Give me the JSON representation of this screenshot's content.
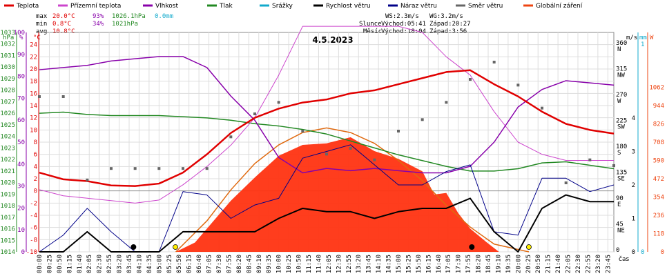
{
  "legend": [
    {
      "label": "Teplota",
      "color": "#e00000"
    },
    {
      "label": "Přízemní teplota",
      "color": "#cc44cc"
    },
    {
      "label": "Vlhkost",
      "color": "#8800aa"
    },
    {
      "label": "Tlak",
      "color": "#228822"
    },
    {
      "label": "Srážky",
      "color": "#11aacc"
    },
    {
      "label": "Rychlost větru",
      "color": "#000000"
    },
    {
      "label": "Náraz větru",
      "color": "#000088"
    },
    {
      "label": "Směr větru",
      "color": "#666666"
    },
    {
      "label": "Globální záření",
      "color": "#ee4411"
    }
  ],
  "stats": {
    "max_label": "max",
    "max_temp": "20.0°C",
    "max_hum": "93%",
    "max_press": "1026.1hPa",
    "max_rain": "0.0mm",
    "min_label": "min",
    "min_temp": "0.8°C",
    "min_hum": "34%",
    "min_press": "1021hPa",
    "avg_label": "avg",
    "avg_temp": "10.8°C"
  },
  "sun": {
    "ws": "WS:2.3m/s",
    "wg": "WG:3.2m/s",
    "sun_label": "Slunce",
    "sun_rise": "Východ:05:41",
    "sun_set": "Západ:20:27",
    "moon_label": "Měsíc",
    "moon_rise": "Východ:18:04",
    "moon_set": "Západ:3:56"
  },
  "colors": {
    "temp": "#e00000",
    "ground": "#cc44cc",
    "hum": "#8800aa",
    "press": "#228822",
    "rain": "#11aacc",
    "wind": "#000000",
    "gust": "#000088",
    "dir": "#666666",
    "rad": "#ee4411",
    "radfill": "#ff3311"
  },
  "chart_data": {
    "type": "line",
    "title": "4.5.2023",
    "xlabel": "čas",
    "x_ticks": [
      "00:00",
      "00:25",
      "00:50",
      "01:15",
      "01:40",
      "02:05",
      "02:30",
      "02:55",
      "03:20",
      "03:45",
      "04:10",
      "04:35",
      "05:00",
      "05:25",
      "05:50",
      "06:15",
      "06:40",
      "07:05",
      "07:30",
      "07:55",
      "08:20",
      "08:45",
      "09:10",
      "09:35",
      "10:00",
      "10:25",
      "10:50",
      "11:15",
      "11:40",
      "12:05",
      "12:30",
      "12:55",
      "13:20",
      "13:45",
      "14:10",
      "14:35",
      "15:00",
      "15:25",
      "15:50",
      "16:15",
      "16:40",
      "17:05",
      "17:30",
      "17:55",
      "18:20",
      "18:45",
      "19:10",
      "19:35",
      "20:00",
      "20:25",
      "20:50",
      "21:15",
      "21:40",
      "22:05",
      "22:30",
      "22:55",
      "23:20",
      "23:45"
    ],
    "axes": {
      "pressure": {
        "label": "hPa",
        "min": 1014,
        "max": 1033,
        "ticks": [
          "1033",
          "1032",
          "1031",
          "1030",
          "1029",
          "1028",
          "1027",
          "1026",
          "1025",
          "1024",
          "1023",
          "1022",
          "1021",
          "1020",
          "1019",
          "1018",
          "1017",
          "1016",
          "1015",
          "1014"
        ]
      },
      "humidity": {
        "label": "%",
        "min": 0,
        "max": 100,
        "ticks": [
          "100",
          "90",
          "80",
          "70",
          "60",
          "50",
          "40",
          "30",
          "20",
          "10",
          "0"
        ]
      },
      "temperature": {
        "label": "°C",
        "min": -10,
        "max": 26,
        "ticks": [
          "24",
          "22",
          "20",
          "18",
          "16",
          "14",
          "12",
          "10",
          "8",
          "6",
          "4",
          "2",
          "0",
          "-2",
          "-4",
          "-6",
          "-8",
          "-10"
        ]
      },
      "wind_direction": {
        "ticks": [
          {
            "v": "360",
            "d": "N"
          },
          {
            "v": "315",
            "d": "NW"
          },
          {
            "v": "270",
            "d": "W"
          },
          {
            "v": "225",
            "d": "SW"
          },
          {
            "v": "180",
            "d": "S"
          },
          {
            "v": "135",
            "d": "SE"
          },
          {
            "v": "90",
            "d": "E"
          },
          {
            "v": "45",
            "d": "NE"
          },
          {
            "v": "0",
            "d": ""
          }
        ]
      },
      "wind_speed": {
        "label": "m/s",
        "ticks": [
          "4",
          "3",
          "2",
          "1",
          "0"
        ]
      },
      "rain": {
        "label": "mm",
        "ticks": [
          "1",
          "0"
        ]
      },
      "radiation": {
        "label": "W",
        "ticks": [
          "1062",
          "944",
          "826",
          "708",
          "590",
          "472",
          "354",
          "236",
          "118",
          "0"
        ]
      }
    },
    "series": [
      {
        "name": "Teplota",
        "unit": "°C",
        "points": [
          [
            0,
            3
          ],
          [
            1,
            1.9
          ],
          [
            2,
            1.6
          ],
          [
            3,
            0.9
          ],
          [
            4,
            0.8
          ],
          [
            5,
            1.2
          ],
          [
            6,
            3
          ],
          [
            7,
            6
          ],
          [
            8,
            9.5
          ],
          [
            9,
            12
          ],
          [
            10,
            13.5
          ],
          [
            11,
            14.5
          ],
          [
            12,
            15
          ],
          [
            13,
            16
          ],
          [
            14,
            16.5
          ],
          [
            15,
            17.5
          ],
          [
            16,
            18.5
          ],
          [
            17,
            19.5
          ],
          [
            18,
            19.8
          ],
          [
            19,
            17.5
          ],
          [
            20,
            15.5
          ],
          [
            21,
            13
          ],
          [
            22,
            11
          ],
          [
            23,
            10
          ],
          [
            24,
            9.4
          ]
        ]
      },
      {
        "name": "Přízemní teplota",
        "unit": "°C",
        "points": [
          [
            0,
            0.2
          ],
          [
            1,
            -0.8
          ],
          [
            2,
            -1.2
          ],
          [
            3,
            -1.6
          ],
          [
            4,
            -2
          ],
          [
            5,
            -1.5
          ],
          [
            6,
            1
          ],
          [
            7,
            4
          ],
          [
            8,
            7.5
          ],
          [
            9,
            12
          ],
          [
            10,
            19
          ],
          [
            11,
            27
          ],
          [
            12,
            27
          ],
          [
            13,
            27
          ],
          [
            14,
            27
          ],
          [
            15,
            27
          ],
          [
            16,
            26
          ],
          [
            17,
            22
          ],
          [
            18,
            19
          ],
          [
            19,
            13
          ],
          [
            20,
            8
          ],
          [
            21,
            6
          ],
          [
            22,
            5
          ],
          [
            23,
            5
          ],
          [
            24,
            5
          ]
        ]
      },
      {
        "name": "Vlhkost",
        "unit": "%",
        "points": [
          [
            0,
            83
          ],
          [
            1,
            84
          ],
          [
            2,
            85
          ],
          [
            3,
            87
          ],
          [
            4,
            88
          ],
          [
            5,
            89
          ],
          [
            6,
            89
          ],
          [
            7,
            84
          ],
          [
            8,
            71
          ],
          [
            9,
            60
          ],
          [
            10,
            43
          ],
          [
            11,
            36
          ],
          [
            12,
            38
          ],
          [
            13,
            37
          ],
          [
            14,
            38
          ],
          [
            15,
            37
          ],
          [
            16,
            36
          ],
          [
            17,
            36
          ],
          [
            18,
            39
          ],
          [
            19,
            50
          ],
          [
            20,
            66
          ],
          [
            21,
            74
          ],
          [
            22,
            78
          ],
          [
            23,
            77
          ],
          [
            24,
            76
          ]
        ]
      },
      {
        "name": "Tlak",
        "unit": "hPa",
        "points": [
          [
            0,
            1026
          ],
          [
            1,
            1026.1
          ],
          [
            2,
            1025.9
          ],
          [
            3,
            1025.8
          ],
          [
            4,
            1025.8
          ],
          [
            5,
            1025.8
          ],
          [
            6,
            1025.7
          ],
          [
            7,
            1025.6
          ],
          [
            8,
            1025.4
          ],
          [
            9,
            1025.1
          ],
          [
            10,
            1024.9
          ],
          [
            11,
            1024.6
          ],
          [
            12,
            1024.2
          ],
          [
            13,
            1023.6
          ],
          [
            14,
            1023
          ],
          [
            15,
            1022.4
          ],
          [
            16,
            1021.9
          ],
          [
            17,
            1021.4
          ],
          [
            18,
            1021
          ],
          [
            19,
            1021
          ],
          [
            20,
            1021.2
          ],
          [
            21,
            1021.7
          ],
          [
            22,
            1021.8
          ],
          [
            23,
            1021.5
          ],
          [
            24,
            1021.2
          ]
        ]
      },
      {
        "name": "Rychlost větru",
        "unit": "m/s",
        "points": [
          [
            0,
            0
          ],
          [
            1,
            0
          ],
          [
            2,
            0.6
          ],
          [
            3,
            0
          ],
          [
            4,
            0
          ],
          [
            5,
            0
          ],
          [
            6,
            0.6
          ],
          [
            7,
            0.6
          ],
          [
            8,
            0.6
          ],
          [
            9,
            0.6
          ],
          [
            10,
            1
          ],
          [
            11,
            1.3
          ],
          [
            12,
            1.2
          ],
          [
            13,
            1.2
          ],
          [
            14,
            1
          ],
          [
            15,
            1.2
          ],
          [
            16,
            1.3
          ],
          [
            17,
            1.3
          ],
          [
            18,
            1.6
          ],
          [
            19,
            0.6
          ],
          [
            20,
            0
          ],
          [
            21,
            1.3
          ],
          [
            22,
            1.7
          ],
          [
            23,
            1.5
          ],
          [
            24,
            1.5
          ]
        ]
      },
      {
        "name": "Náraz větru",
        "unit": "m/s",
        "points": [
          [
            0,
            0
          ],
          [
            1,
            0.5
          ],
          [
            2,
            1.3
          ],
          [
            3,
            0.6
          ],
          [
            4,
            0
          ],
          [
            5,
            0
          ],
          [
            6,
            1.8
          ],
          [
            7,
            1.7
          ],
          [
            8,
            1
          ],
          [
            9,
            1.4
          ],
          [
            10,
            1.6
          ],
          [
            11,
            2.8
          ],
          [
            12,
            3
          ],
          [
            13,
            3.2
          ],
          [
            14,
            2.6
          ],
          [
            15,
            2
          ],
          [
            16,
            2
          ],
          [
            17,
            2.4
          ],
          [
            18,
            2.6
          ],
          [
            19,
            0.6
          ],
          [
            20,
            0.5
          ],
          [
            21,
            2.2
          ],
          [
            22,
            2.2
          ],
          [
            23,
            1.8
          ],
          [
            24,
            2
          ]
        ]
      },
      {
        "name": "Směr větru",
        "unit": "°",
        "points": [
          [
            0,
            270
          ],
          [
            1,
            270
          ],
          [
            2,
            125
          ],
          [
            3,
            145
          ],
          [
            4,
            145
          ],
          [
            5,
            145
          ],
          [
            6,
            145
          ],
          [
            7,
            145
          ],
          [
            8,
            200
          ],
          [
            9,
            240
          ],
          [
            10,
            260
          ],
          [
            11,
            210
          ],
          [
            12,
            170
          ],
          [
            13,
            180
          ],
          [
            14,
            160
          ],
          [
            15,
            210
          ],
          [
            16,
            230
          ],
          [
            17,
            260
          ],
          [
            18,
            300
          ],
          [
            19,
            330
          ],
          [
            20,
            290
          ],
          [
            21,
            250
          ],
          [
            22,
            120
          ],
          [
            23,
            160
          ],
          [
            24,
            150
          ]
        ]
      },
      {
        "name": "Globální záření",
        "unit": "W/m²",
        "points": [
          [
            5.7,
            0
          ],
          [
            6.5,
            60
          ],
          [
            7,
            150
          ],
          [
            8,
            330
          ],
          [
            9,
            480
          ],
          [
            10,
            620
          ],
          [
            11,
            690
          ],
          [
            12,
            700
          ],
          [
            13,
            740
          ],
          [
            14,
            650
          ],
          [
            15,
            600
          ],
          [
            16,
            520
          ],
          [
            16.5,
            370
          ],
          [
            17,
            380
          ],
          [
            17.5,
            250
          ],
          [
            18,
            150
          ],
          [
            18.7,
            60
          ],
          [
            19.2,
            0
          ]
        ]
      },
      {
        "name": "Teoretické záření",
        "unit": "W/m²",
        "points": [
          [
            5.7,
            0
          ],
          [
            7,
            200
          ],
          [
            8,
            400
          ],
          [
            9,
            570
          ],
          [
            10,
            690
          ],
          [
            11,
            770
          ],
          [
            12,
            800
          ],
          [
            13,
            770
          ],
          [
            14,
            700
          ],
          [
            15,
            590
          ],
          [
            16,
            460
          ],
          [
            17,
            300
          ],
          [
            18,
            160
          ],
          [
            19,
            50
          ],
          [
            20.45,
            0
          ]
        ]
      }
    ]
  }
}
